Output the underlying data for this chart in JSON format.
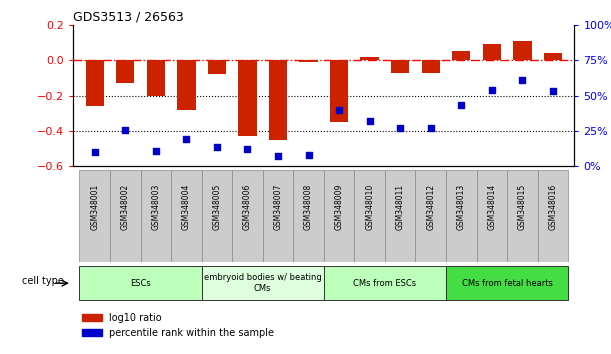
{
  "title": "GDS3513 / 26563",
  "samples": [
    "GSM348001",
    "GSM348002",
    "GSM348003",
    "GSM348004",
    "GSM348005",
    "GSM348006",
    "GSM348007",
    "GSM348008",
    "GSM348009",
    "GSM348010",
    "GSM348011",
    "GSM348012",
    "GSM348013",
    "GSM348014",
    "GSM348015",
    "GSM348016"
  ],
  "log10_ratio": [
    -0.26,
    -0.13,
    -0.2,
    -0.28,
    -0.08,
    -0.43,
    -0.45,
    -0.01,
    -0.35,
    0.02,
    -0.07,
    -0.07,
    0.05,
    0.09,
    0.11,
    0.04
  ],
  "percentile_rank": [
    10,
    26,
    11,
    19,
    14,
    12,
    7,
    8,
    40,
    32,
    27,
    27,
    43,
    54,
    61,
    53
  ],
  "cell_type_groups": [
    {
      "label": "ESCs",
      "start": 0,
      "end": 3,
      "color": "#bbffbb"
    },
    {
      "label": "embryoid bodies w/ beating\nCMs",
      "start": 4,
      "end": 7,
      "color": "#ddffdd"
    },
    {
      "label": "CMs from ESCs",
      "start": 8,
      "end": 11,
      "color": "#bbffbb"
    },
    {
      "label": "CMs from fetal hearts",
      "start": 12,
      "end": 15,
      "color": "#44dd44"
    }
  ],
  "bar_color": "#cc2200",
  "dot_color": "#0000cc",
  "left_ylim": [
    -0.6,
    0.2
  ],
  "right_ylim": [
    0,
    100
  ],
  "left_yticks": [
    -0.6,
    -0.4,
    -0.2,
    0.0,
    0.2
  ],
  "right_yticks": [
    0,
    25,
    50,
    75,
    100
  ],
  "right_yticklabels": [
    "0%",
    "25%",
    "50%",
    "75%",
    "100%"
  ],
  "hline_val": 0.0,
  "dotted_lines": [
    -0.2,
    -0.4
  ],
  "legend_items": [
    {
      "color": "#cc2200",
      "label": "log10 ratio"
    },
    {
      "color": "#0000cc",
      "label": "percentile rank within the sample"
    }
  ],
  "cell_type_label": "cell type"
}
